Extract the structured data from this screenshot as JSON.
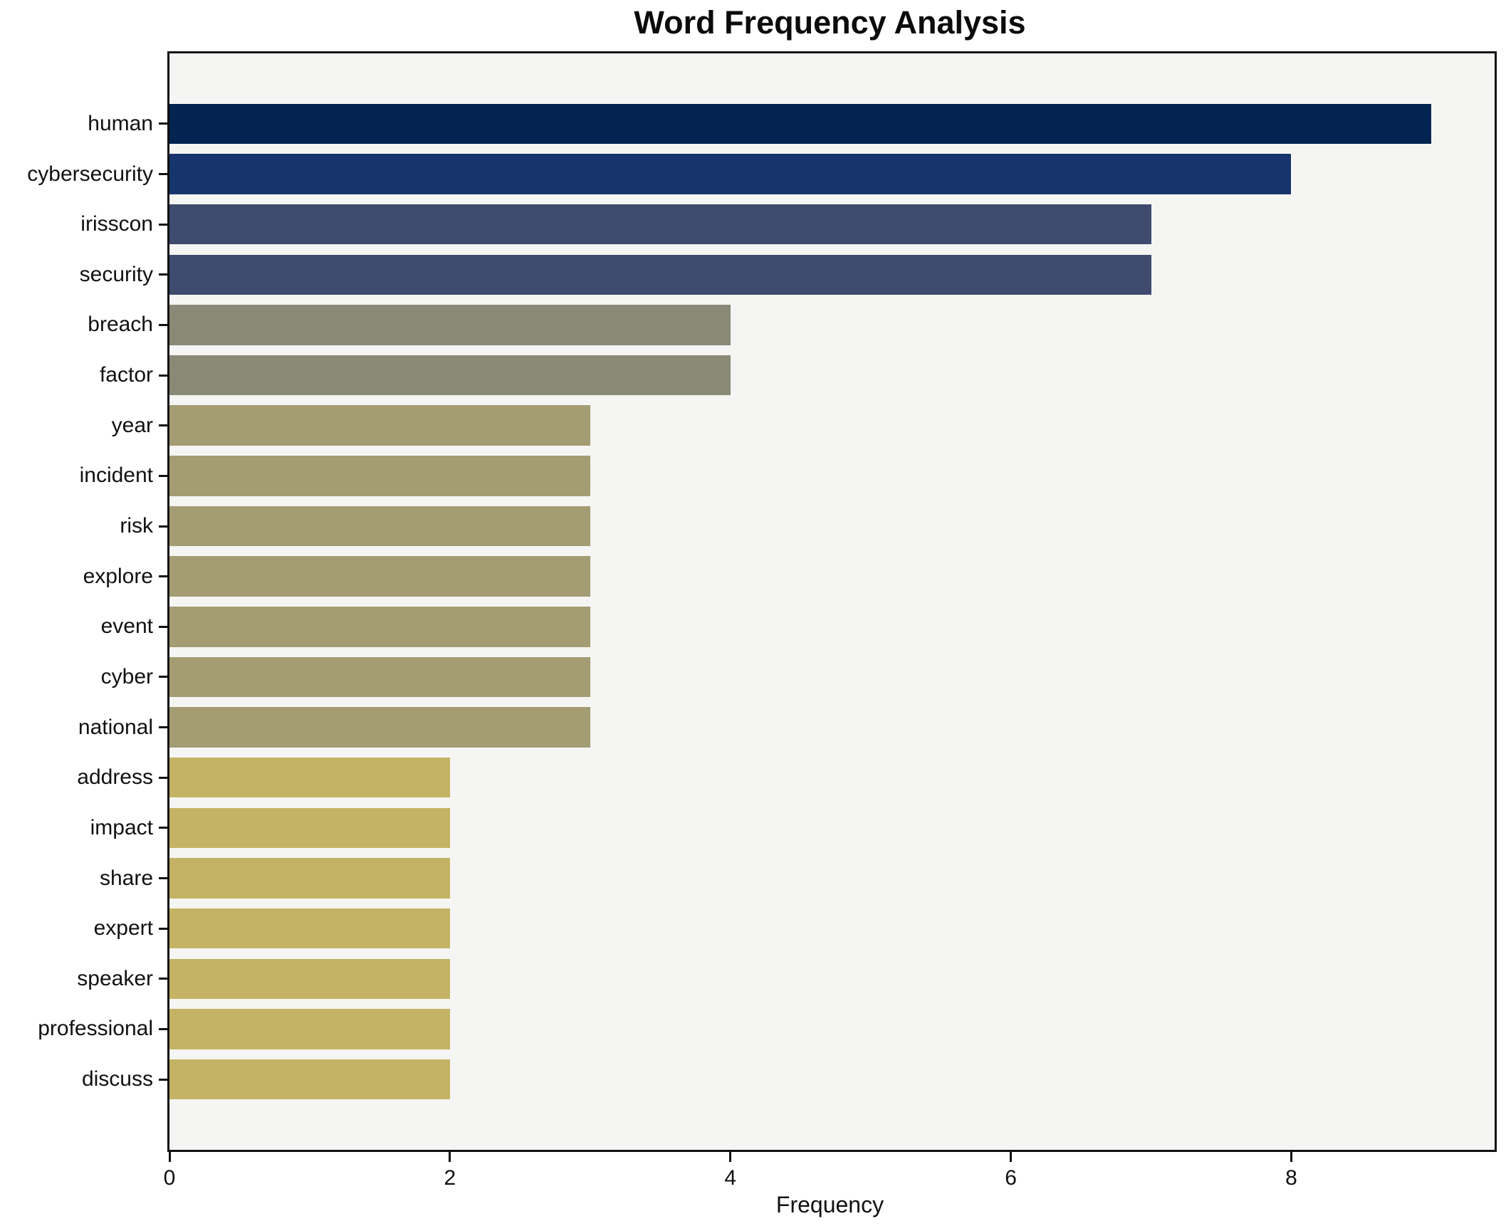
{
  "chart_data": {
    "type": "bar",
    "orientation": "horizontal",
    "title": "Word Frequency Analysis",
    "xlabel": "Frequency",
    "ylabel": "",
    "categories": [
      "human",
      "cybersecurity",
      "irisscon",
      "security",
      "breach",
      "factor",
      "year",
      "incident",
      "risk",
      "explore",
      "event",
      "cyber",
      "national",
      "address",
      "impact",
      "share",
      "expert",
      "speaker",
      "professional",
      "discuss"
    ],
    "values": [
      9,
      8,
      7,
      7,
      4,
      4,
      3,
      3,
      3,
      3,
      3,
      3,
      3,
      2,
      2,
      2,
      2,
      2,
      2,
      2
    ],
    "bar_colors": [
      "#032450",
      "#17356c",
      "#3e4b6e",
      "#3e4b6e",
      "#8a8978",
      "#8a8978",
      "#a49c73",
      "#a49c73",
      "#a49c73",
      "#a49c73",
      "#a49c73",
      "#a49c73",
      "#a49c73",
      "#c4b364",
      "#c4b364",
      "#c4b364",
      "#c4b364",
      "#c4b364",
      "#c4b364",
      "#c4b364"
    ],
    "xticks": [
      0,
      2,
      4,
      6,
      8
    ],
    "xlim": [
      0,
      9.45
    ],
    "grid": false,
    "legend": null,
    "bar_height_fraction": 0.8,
    "plot_bg": "#f5f5f3",
    "fig_bg": "#ffffff",
    "spine_color": "#111111",
    "text_color": "#111111"
  }
}
